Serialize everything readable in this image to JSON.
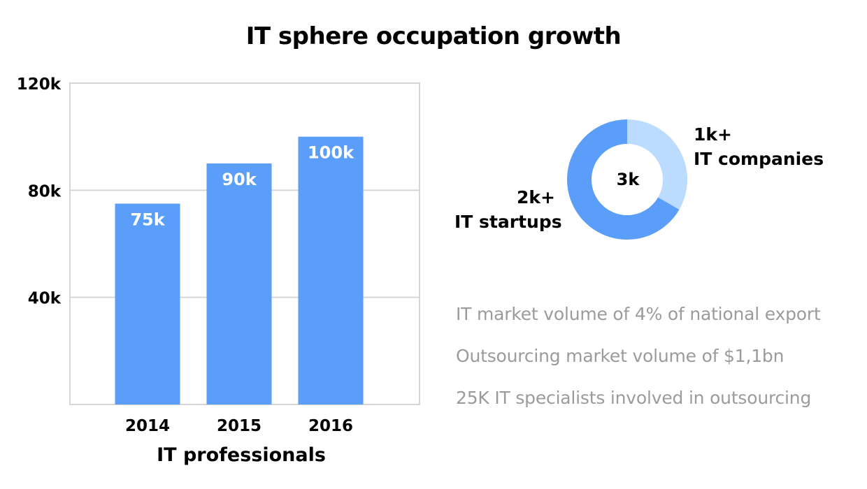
{
  "title": "IT sphere occupation growth",
  "chart_data": [
    {
      "type": "bar",
      "title": "IT sphere occupation growth",
      "xlabel": "IT professionals",
      "ylabel": "",
      "categories": [
        "2014",
        "2015",
        "2016"
      ],
      "values": [
        75000,
        90000,
        100000
      ],
      "value_labels": [
        "75k",
        "90k",
        "100k"
      ],
      "ylim": [
        0,
        120000
      ],
      "yticks": [
        40000,
        80000,
        120000
      ],
      "ytick_labels": [
        "40k",
        "80k",
        "120k"
      ],
      "grid": true,
      "color": "#5b9ef9"
    },
    {
      "type": "pie",
      "style": "donut",
      "center_label": "3k",
      "slices": [
        {
          "name": "IT companies",
          "value": 1000,
          "value_label": "1k+",
          "color": "#bcdcff"
        },
        {
          "name": "IT startups",
          "value": 2000,
          "value_label": "2k+",
          "color": "#5b9ef9"
        }
      ]
    }
  ],
  "donut_labels": {
    "companies": {
      "value": "1k+",
      "name": "IT companies"
    },
    "startups": {
      "value": "2k+",
      "name": "IT startups"
    }
  },
  "facts": [
    "IT market volume of 4% of national export",
    "Outsourcing market volume of $1,1bn",
    "25K IT specialists involved in outsourcing"
  ],
  "colors": {
    "bar": "#5b9ef9",
    "donut_light": "#bcdcff",
    "grid": "#d6d6d6",
    "fact_text": "#9b9b9b"
  }
}
